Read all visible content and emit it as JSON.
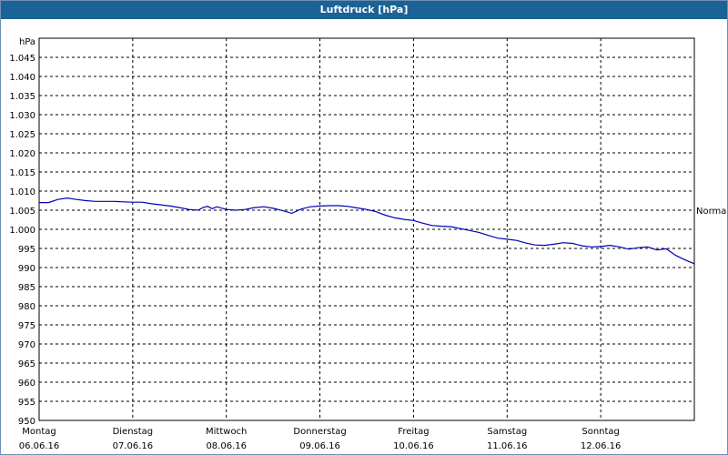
{
  "window": {
    "title": "Luftdruck [hPa]"
  },
  "chart_data": {
    "type": "line",
    "title": "Luftdruck [hPa]",
    "ylabel": "hPa",
    "ylim": [
      950,
      1050
    ],
    "yticks": [
      "950",
      "955",
      "960",
      "965",
      "970",
      "975",
      "980",
      "985",
      "990",
      "995",
      "1.000",
      "1.005",
      "1.010",
      "1.015",
      "1.020",
      "1.025",
      "1.030",
      "1.035",
      "1.040",
      "1.045"
    ],
    "xlim": [
      0,
      7
    ],
    "categories": [
      {
        "day": "Montag",
        "date": "06.06.16"
      },
      {
        "day": "Dienstag",
        "date": "07.06.16"
      },
      {
        "day": "Mittwoch",
        "date": "08.06.16"
      },
      {
        "day": "Donnerstag",
        "date": "09.06.16"
      },
      {
        "day": "Freitag",
        "date": "10.06.16"
      },
      {
        "day": "Samstag",
        "date": "11.06.16"
      },
      {
        "day": "Sonntag",
        "date": "12.06.16"
      }
    ],
    "reference_line": {
      "label": "Normal",
      "value": 1005
    },
    "grid": true,
    "series": [
      {
        "color": "#0000b4",
        "x": [
          0,
          0.1,
          0.2,
          0.3,
          0.4,
          0.5,
          0.6,
          0.7,
          0.8,
          0.9,
          1.0,
          1.1,
          1.2,
          1.3,
          1.4,
          1.5,
          1.6,
          1.7,
          1.75,
          1.8,
          1.85,
          1.9,
          2.0,
          2.1,
          2.2,
          2.3,
          2.4,
          2.5,
          2.6,
          2.7,
          2.8,
          2.9,
          3.0,
          3.1,
          3.2,
          3.3,
          3.4,
          3.5,
          3.6,
          3.7,
          3.8,
          3.9,
          4.0,
          4.1,
          4.2,
          4.3,
          4.4,
          4.5,
          4.6,
          4.7,
          4.8,
          4.9,
          5.0,
          5.1,
          5.2,
          5.3,
          5.4,
          5.5,
          5.6,
          5.7,
          5.8,
          5.9,
          6.0,
          6.1,
          6.2,
          6.3,
          6.4,
          6.5,
          6.55,
          6.6,
          6.7,
          6.8,
          6.9,
          7.0
        ],
        "y": [
          1007,
          1007,
          1007.8,
          1008.2,
          1007.8,
          1007.5,
          1007.3,
          1007.3,
          1007.3,
          1007.2,
          1007.1,
          1007.1,
          1006.7,
          1006.4,
          1006.1,
          1005.7,
          1005.2,
          1005.0,
          1005.7,
          1006.0,
          1005.4,
          1005.9,
          1005.2,
          1005.0,
          1005.2,
          1005.7,
          1005.9,
          1005.5,
          1004.9,
          1004.2,
          1005.3,
          1005.9,
          1006.1,
          1006.2,
          1006.2,
          1006.0,
          1005.6,
          1005.2,
          1004.6,
          1003.7,
          1003.0,
          1002.6,
          1002.3,
          1001.6,
          1001.0,
          1000.8,
          1000.7,
          1000.2,
          999.7,
          999.2,
          998.4,
          997.7,
          997.4,
          997.1,
          996.4,
          995.9,
          995.8,
          996.1,
          996.5,
          996.3,
          995.7,
          995.4,
          995.5,
          995.8,
          995.4,
          994.8,
          995.2,
          995.4,
          995.0,
          994.6,
          994.9,
          993.2,
          992.0,
          991.0
        ]
      }
    ]
  }
}
